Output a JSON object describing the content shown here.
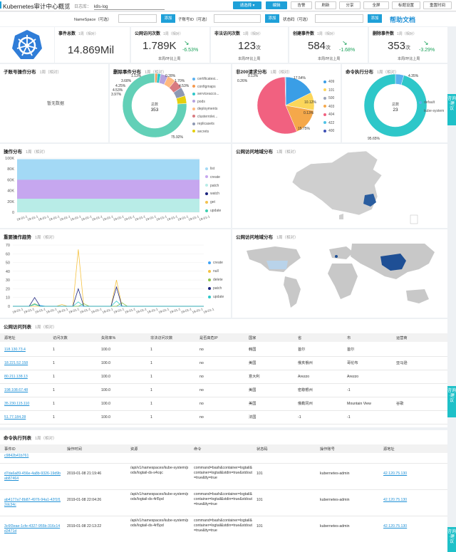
{
  "topbar": {
    "title": "Kubernetes审计中心概览",
    "store_label": "日志库",
    "store_value": "k8s-log",
    "buttons": [
      "请选择 ▾",
      "编辑",
      "告警",
      "刷新",
      "分享",
      "全屏",
      "标题设置",
      "重置时间"
    ]
  },
  "filter": {
    "namespace_label": "NameSpace（可选）",
    "sub_label": "子账号ID（可选）",
    "status_label": "状态码（可选）",
    "add": "添加",
    "help": "帮助文档"
  },
  "kpis": [
    {
      "label": "事件总数",
      "period": "1周（相对）",
      "value": "14.869Mil"
    },
    {
      "label": "公网访问次数",
      "period": "1周（相对）",
      "value": "1.789K",
      "change": "-6.53%",
      "note": "本周/环比上周"
    },
    {
      "label": "非法访问次数",
      "period": "1周（相对）",
      "value": "123",
      "unit": "次",
      "note": "本周/环比上周"
    },
    {
      "label": "创建事件数",
      "period": "1周（相对）",
      "value": "584",
      "unit": "次",
      "change": "-1.68%",
      "note": "本周/环比上周"
    },
    {
      "label": "删除事件数",
      "period": "1周（相对）",
      "value": "353",
      "unit": "次",
      "change": "-3.29%",
      "note": "本周/环比上周"
    }
  ],
  "period": "1周（相对）",
  "sub_ops": {
    "title": "子账号操作分布",
    "empty": "暂无数据"
  },
  "delete_dist": {
    "title": "删除事件分布",
    "total_label": "总数",
    "total": "353",
    "slices": [
      {
        "name": "certificatesi...",
        "pct": 0.28,
        "color": "#5ab1ef"
      },
      {
        "name": "configmaps",
        "pct": 1.13,
        "color": "#f5994e"
      },
      {
        "name": "serviceacco...",
        "pct": 1.7,
        "color": "#2ec7c9"
      },
      {
        "name": "pods",
        "pct": 3.68,
        "color": "#b6a2de"
      },
      {
        "name": "deployments",
        "pct": 4.25,
        "color": "#ffb980"
      },
      {
        "name": "clusterrolei...",
        "pct": 4.53,
        "color": "#d87a80"
      },
      {
        "name": "replicasets",
        "pct": 4.53,
        "color": "#8d98b3"
      },
      {
        "name": "secrets",
        "pct": 3.97,
        "color": "#e5cf0d"
      },
      {
        "name": "other",
        "pct": 75.92,
        "color": "#62d0b7"
      }
    ],
    "labels": [
      "0.28%",
      "1.13%",
      "1.70%",
      "3.68%",
      "4.53%",
      "4.25%",
      "4.53%",
      "3.97%",
      "75.92%"
    ]
  },
  "non200": {
    "title": "非200请求分布",
    "slices": [
      {
        "name": "409",
        "pct": 17.54,
        "color": "#3a9ee6"
      },
      {
        "name": "101",
        "pct": 10.12,
        "color": "#fbd65a"
      },
      {
        "name": "500",
        "pct": 0.13,
        "color": "#9aa4b8"
      },
      {
        "name": "403",
        "pct": 15.75,
        "color": "#f5a84a"
      },
      {
        "name": "404",
        "pct": 55.87,
        "color": "#f16180"
      },
      {
        "name": "422",
        "pct": 0.13,
        "color": "#4fc3e6"
      },
      {
        "name": "400",
        "pct": 0.26,
        "color": "#3f51b5"
      }
    ],
    "labels": [
      "0.13%",
      "0.26%",
      "17.54%",
      "10.12%",
      "0.13%",
      "15.75%"
    ]
  },
  "cmd_exec": {
    "title": "命令执行分布",
    "total_label": "总数",
    "total": "23",
    "slices": [
      {
        "name": "default",
        "pct": 4.35,
        "color": "#5ab1ef"
      },
      {
        "name": "kube-system",
        "pct": 95.65,
        "color": "#2ec7c9"
      }
    ],
    "labels": [
      "4.35%",
      "95.65%"
    ]
  },
  "ops_dist": {
    "title": "操作分布",
    "yticks": [
      "100K",
      "80K",
      "60K",
      "40K",
      "20K",
      "0"
    ],
    "xtick": "19-01-1",
    "chart_data": {
      "type": "area",
      "ylim": [
        0,
        100000
      ],
      "series": [
        {
          "name": "list",
          "color": "#a3d9f5",
          "values": [
            98000,
            98000,
            98000,
            98000,
            98000,
            98000,
            98000,
            98000,
            98000,
            98000
          ]
        },
        {
          "name": "create",
          "color": "#c6a7ef",
          "values": [
            60000,
            60000,
            60000,
            60000,
            60000,
            60000,
            60000,
            60000,
            60000,
            60000
          ]
        },
        {
          "name": "patch",
          "color": "#b8ece7",
          "values": [
            25000,
            25000,
            25000,
            25000,
            25000,
            25000,
            25000,
            25000,
            25000,
            25000
          ]
        },
        {
          "name": "watch",
          "color": "#1a237e",
          "values": [
            0,
            0,
            0,
            0,
            0,
            0,
            0,
            0,
            0,
            0
          ]
        },
        {
          "name": "get",
          "color": "#f2c14e",
          "values": [
            0,
            0,
            0,
            0,
            0,
            0,
            0,
            0,
            0,
            0
          ]
        },
        {
          "name": "update",
          "color": "#3ecfb1",
          "values": [
            0,
            0,
            0,
            0,
            0,
            0,
            0,
            0,
            0,
            0
          ]
        }
      ]
    }
  },
  "geo_cn": {
    "title": "公网访问地域分布"
  },
  "trend": {
    "title": "重要操作趋势",
    "yticks": [
      "70",
      "60",
      "50",
      "40",
      "30",
      "20",
      "10",
      "0"
    ],
    "xtick": "19-01-1",
    "chart_data": {
      "type": "line",
      "ylim": [
        0,
        70
      ],
      "series": [
        {
          "name": "create",
          "color": "#42a5f5",
          "values": [
            0,
            0,
            0,
            0,
            2,
            1,
            0,
            0,
            0,
            0,
            0,
            0,
            0,
            0,
            0,
            0,
            0,
            0,
            0,
            0,
            0,
            0,
            0,
            0,
            0,
            0,
            0,
            0,
            0,
            0,
            0,
            0,
            0,
            0,
            0,
            0
          ]
        },
        {
          "name": "null",
          "color": "#f5c242",
          "values": [
            0,
            0,
            0,
            0,
            0,
            0,
            0,
            0,
            0,
            2,
            0,
            0,
            65,
            0,
            0,
            0,
            0,
            0,
            0,
            30,
            0,
            0,
            0,
            0,
            0,
            0,
            0,
            0,
            0,
            0,
            0,
            0,
            0,
            0,
            0,
            0
          ]
        },
        {
          "name": "delete",
          "color": "#8bc34a",
          "values": [
            0,
            0,
            0,
            0,
            3,
            0,
            0,
            0,
            0,
            0,
            0,
            0,
            0,
            3,
            0,
            0,
            0,
            0,
            0,
            0,
            4,
            0,
            0,
            0,
            0,
            0,
            0,
            0,
            0,
            0,
            0,
            0,
            0,
            0,
            0,
            0
          ]
        },
        {
          "name": "patch",
          "color": "#1a237e",
          "values": [
            0,
            0,
            0,
            0,
            10,
            0,
            0,
            0,
            0,
            0,
            0,
            0,
            20,
            0,
            0,
            0,
            0,
            0,
            0,
            22,
            0,
            0,
            0,
            0,
            0,
            0,
            0,
            0,
            0,
            0,
            0,
            0,
            0,
            0,
            0,
            0
          ]
        },
        {
          "name": "update",
          "color": "#2ec7c9",
          "values": [
            0,
            0,
            0,
            0,
            2,
            0,
            0,
            0,
            0,
            0,
            0,
            0,
            5,
            0,
            0,
            0,
            0,
            0,
            0,
            6,
            0,
            0,
            0,
            0,
            0,
            0,
            0,
            0,
            0,
            0,
            0,
            0,
            0,
            0,
            0,
            0
          ]
        }
      ]
    }
  },
  "geo_world": {
    "title": "公网访问地域分布"
  },
  "side_tab": "咨询·建议",
  "public_table": {
    "title": "公网访问列表",
    "columns": [
      "源地址",
      "访问次数",
      "失败率%",
      "非法访问次数",
      "是否高危IP",
      "国家",
      "省",
      "市",
      "运营商"
    ],
    "rows": [
      [
        "118.130.73.4",
        "1",
        "100.0",
        "1",
        "no",
        "韩国",
        "首尔",
        "首尔",
        ""
      ],
      [
        "18.221.52.158",
        "1",
        "100.0",
        "1",
        "no",
        "美国",
        "俄亥俄州",
        "哥伦布",
        "亚马逊"
      ],
      [
        "80.211.138.13",
        "1",
        "100.0",
        "1",
        "no",
        "意大利",
        "Arezzo",
        "Arezzo",
        ""
      ],
      [
        "198.108.67.48",
        "1",
        "100.0",
        "1",
        "no",
        "美国",
        "密歇根州",
        "-1",
        ""
      ],
      [
        "35.230.115.110",
        "1",
        "100.0",
        "1",
        "no",
        "美国",
        "俄勒冈州",
        "Mountain View",
        "谷歌"
      ],
      [
        "51.77.184.28",
        "1",
        "100.0",
        "1",
        "no",
        "法国",
        "-1",
        "-1",
        ""
      ]
    ]
  },
  "cmd_table": {
    "title": "命令执行列表",
    "columns": [
      "事件ID",
      "操作时间",
      "资源",
      "命令",
      "状态码",
      "操作账号",
      "源地址"
    ],
    "partial_row": [
      "c9842b41b761"
    ],
    "rows": [
      [
        "d7da6a89-456e-4a8b-9326-19d9bab87464",
        "2019-01-08 21:19:46",
        "/api/v1/namespaces/kube-system/pods/logtail-ds-s4cqc",
        "command=bash&container=logtail&container=logtail&stdin=true&stdout=true&tty=true",
        "101",
        "kubernetes-admin",
        "42.120.75.130"
      ],
      [
        "ab4177a7-8b87-4976-94a1-42f1f12dc34c",
        "2019-01-08 22:04:26",
        "/api/v1/namespaces/kube-system/pods/logtail-ds-4rl5pd",
        "command=bash&container=logtail&container=logtail&stdin=true&stdout=true&tty=true",
        "101",
        "kubernetes-admin",
        "42.120.75.130"
      ],
      [
        "3c6f3eae-1cfe-4327-955b-316c14d3471d",
        "2019-01-08 22:13:22",
        "/api/v1/namespaces/kube-system/pods/logtail-ds-4rl5pd",
        "command=bash&container=logtail&container=logtail&stdin=true&stdout=true&tty=true",
        "101",
        "kubernetes-admin",
        "42.120.75.130"
      ]
    ]
  }
}
